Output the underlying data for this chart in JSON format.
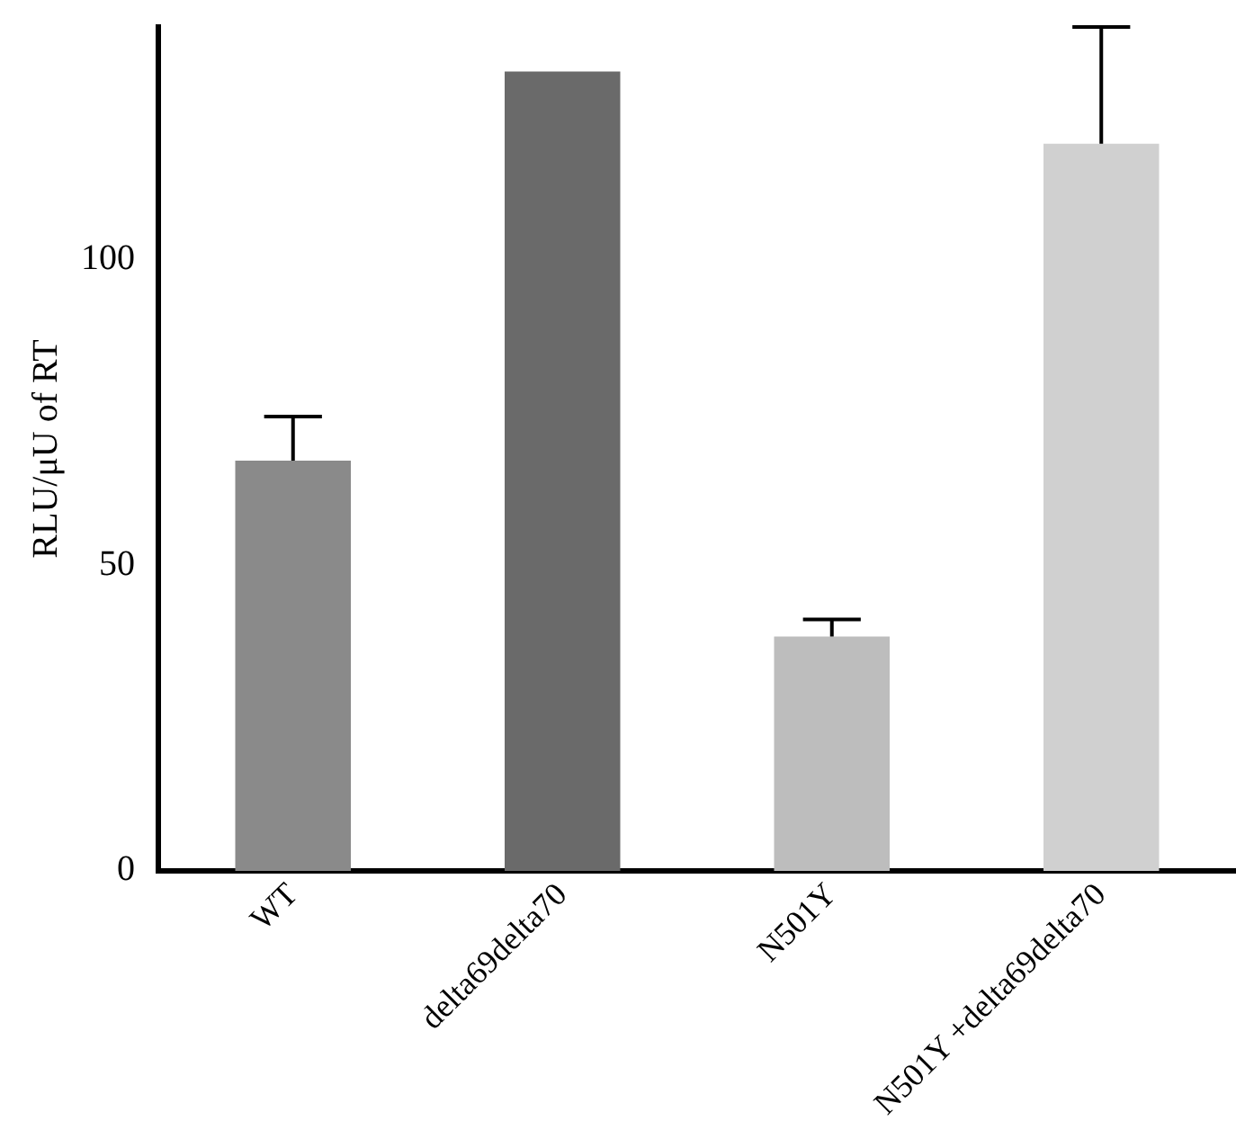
{
  "chart_data": {
    "type": "bar",
    "ylabel": "RLU/μU of RT",
    "categories": [
      "WT",
      "delta69delta70",
      "N501Y",
      "N501Y +delta69delta70"
    ],
    "values": [
      67.1,
      130.7,
      38.3,
      118.9
    ],
    "colors": [
      "#8a8a8a",
      "#6a6a6a",
      "#bdbdbd",
      "#d0d0d0"
    ],
    "errors": [
      [
        67.1,
        74.3
      ],
      null,
      [
        38.3,
        41.1
      ],
      [
        118.9,
        138
      ]
    ],
    "ylim": [
      0,
      138
    ],
    "yticks": [
      0,
      50,
      100
    ],
    "grid": false,
    "legend": false
  }
}
